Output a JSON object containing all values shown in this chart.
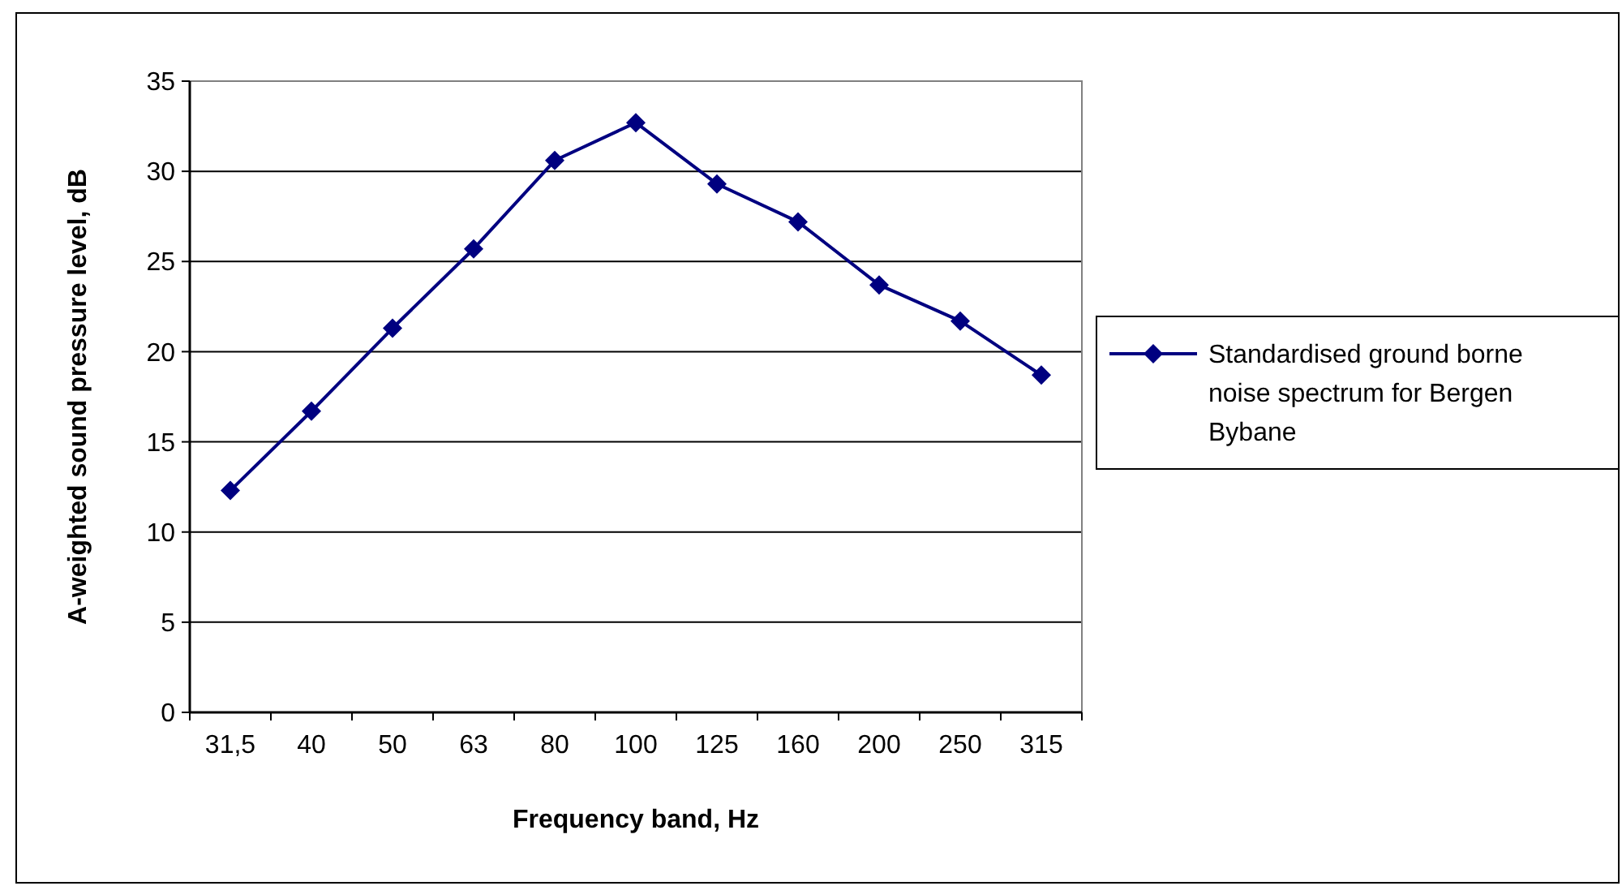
{
  "chart_data": {
    "type": "line",
    "xlabel": "Frequency band, Hz",
    "ylabel": "A-weighted sound pressure level, dB",
    "categories": [
      "31,5",
      "40",
      "50",
      "63",
      "80",
      "100",
      "125",
      "160",
      "200",
      "250",
      "315"
    ],
    "series": [
      {
        "name": "Standardised ground borne noise spectrum for Bergen Bybane",
        "color": "#000080",
        "values": [
          12.3,
          16.7,
          21.3,
          25.7,
          30.6,
          32.7,
          29.3,
          27.2,
          23.7,
          21.7,
          18.7
        ]
      }
    ],
    "ylim": [
      0,
      35
    ],
    "yticks": [
      0,
      5,
      10,
      15,
      20,
      25,
      30,
      35
    ],
    "grid": "y",
    "legend": "right",
    "marker": "diamond",
    "line_style": "solid"
  }
}
